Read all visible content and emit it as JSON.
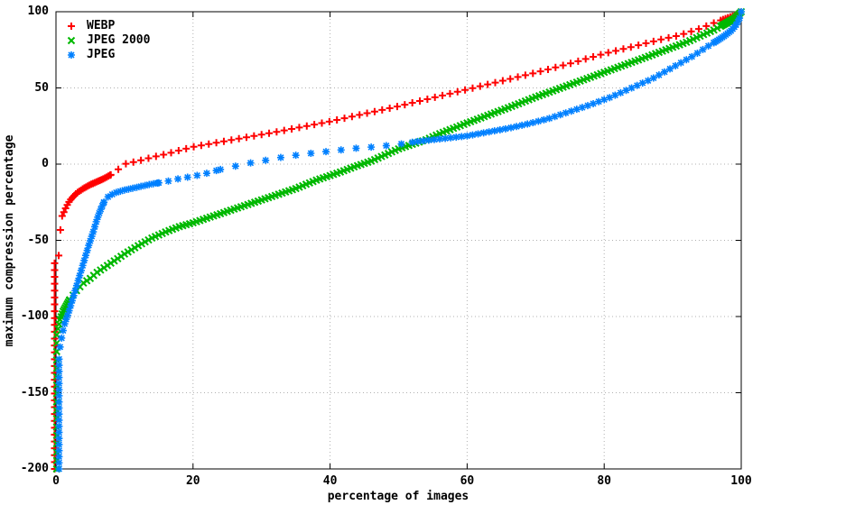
{
  "chart_data": {
    "type": "scatter",
    "title": "",
    "xlabel": "percentage of images",
    "ylabel": "maximum compression percentage",
    "xlim": [
      0,
      100
    ],
    "ylim": [
      -200,
      100
    ],
    "xticks": [
      0,
      20,
      40,
      60,
      80,
      100
    ],
    "yticks": [
      100,
      50,
      0,
      -50,
      -100,
      -150,
      -200
    ],
    "grid": true,
    "grid_style": "dotted",
    "grid_color": "#b0b0b0",
    "border_color": "#000000",
    "legend_position": "top-left-inside",
    "series": [
      {
        "name": "WEBP",
        "color": "#ff0000",
        "marker": "plus",
        "start_column": {
          "x": -0.2,
          "y_from": -200,
          "y_to": -62,
          "step": 4.5
        },
        "curve": [
          [
            0.4,
            -60
          ],
          [
            0.6,
            -45
          ],
          [
            0.9,
            -34
          ],
          [
            1.5,
            -28
          ],
          [
            2,
            -24
          ],
          [
            3,
            -19
          ],
          [
            4,
            -16
          ],
          [
            5,
            -13.5
          ],
          [
            6,
            -11.5
          ],
          [
            7,
            -9.5
          ],
          [
            8,
            -7
          ],
          [
            9,
            -4
          ],
          [
            9.5,
            -1
          ],
          [
            10,
            0
          ],
          [
            12,
            2
          ],
          [
            14,
            4.5
          ],
          [
            16,
            6.5
          ],
          [
            18,
            9
          ],
          [
            20,
            11.3
          ],
          [
            24,
            14.5
          ],
          [
            28,
            17.8
          ],
          [
            32,
            21
          ],
          [
            36,
            24.5
          ],
          [
            40,
            28
          ],
          [
            45,
            33
          ],
          [
            50,
            38
          ],
          [
            55,
            43.5
          ],
          [
            60,
            49
          ],
          [
            65,
            54.5
          ],
          [
            70,
            60
          ],
          [
            75,
            66
          ],
          [
            80,
            72.5
          ],
          [
            85,
            78
          ],
          [
            88,
            81.5
          ],
          [
            91,
            84.5
          ],
          [
            94,
            89
          ],
          [
            96.5,
            93.5
          ],
          [
            98,
            96
          ],
          [
            99,
            97.5
          ],
          [
            100,
            100
          ]
        ],
        "sampling": [
          {
            "from": 0.4,
            "to": 8,
            "step": 0.25
          },
          {
            "from": 8,
            "to": 97,
            "step": 1.1
          },
          {
            "from": 97,
            "to": 100,
            "step": 0.35
          }
        ]
      },
      {
        "name": "JPEG 2000",
        "color": "#00b800",
        "marker": "cross",
        "start_column": {
          "x": 0.1,
          "y_from": -200,
          "y_to": -112,
          "step": 5.5
        },
        "curve": [
          [
            0.3,
            -108
          ],
          [
            0.6,
            -102
          ],
          [
            1,
            -97
          ],
          [
            1.5,
            -93
          ],
          [
            2,
            -89
          ],
          [
            3,
            -83
          ],
          [
            4,
            -78
          ],
          [
            5,
            -75
          ],
          [
            6,
            -71
          ],
          [
            7,
            -68
          ],
          [
            8,
            -65
          ],
          [
            10,
            -59
          ],
          [
            12,
            -53.5
          ],
          [
            14,
            -48.5
          ],
          [
            16,
            -44.5
          ],
          [
            18,
            -41
          ],
          [
            20,
            -38.5
          ],
          [
            23,
            -34
          ],
          [
            26,
            -29.5
          ],
          [
            29,
            -25
          ],
          [
            32,
            -20.5
          ],
          [
            35,
            -16
          ],
          [
            38,
            -10.5
          ],
          [
            41,
            -6
          ],
          [
            44,
            -1
          ],
          [
            46,
            2
          ],
          [
            48,
            6
          ],
          [
            50,
            10
          ],
          [
            52,
            13
          ],
          [
            54,
            16
          ],
          [
            56,
            20
          ],
          [
            58,
            23.5
          ],
          [
            60,
            27
          ],
          [
            63,
            32
          ],
          [
            66,
            37
          ],
          [
            70,
            44
          ],
          [
            74,
            50.5
          ],
          [
            78,
            57
          ],
          [
            82,
            63.5
          ],
          [
            86,
            70
          ],
          [
            89,
            75
          ],
          [
            92,
            80
          ],
          [
            94,
            84
          ],
          [
            96,
            88
          ],
          [
            98,
            93
          ],
          [
            99,
            95.5
          ],
          [
            100,
            100
          ]
        ],
        "sampling": [
          {
            "from": 0.3,
            "to": 2,
            "step": 0.15
          },
          {
            "from": 2,
            "to": 97,
            "step": 0.5
          },
          {
            "from": 97,
            "to": 100,
            "step": 0.2
          }
        ]
      },
      {
        "name": "JPEG",
        "color": "#0080ff",
        "marker": "star",
        "start_column": {
          "x": 0.45,
          "y_from": -200,
          "y_to": -125,
          "step": 4
        },
        "curve": [
          [
            0.6,
            -120
          ],
          [
            0.9,
            -112
          ],
          [
            1.3,
            -104
          ],
          [
            1.8,
            -98
          ],
          [
            2.4,
            -89
          ],
          [
            3,
            -80
          ],
          [
            3.6,
            -71
          ],
          [
            4.2,
            -62
          ],
          [
            4.8,
            -53
          ],
          [
            5.4,
            -45
          ],
          [
            6,
            -36
          ],
          [
            6.5,
            -30
          ],
          [
            7,
            -25
          ],
          [
            7.6,
            -21.5
          ],
          [
            8.5,
            -19
          ],
          [
            10,
            -17
          ],
          [
            12,
            -15
          ],
          [
            14,
            -13
          ],
          [
            16,
            -11.5
          ],
          [
            18,
            -9.5
          ],
          [
            20,
            -8
          ],
          [
            22,
            -6
          ],
          [
            24,
            -3.5
          ],
          [
            26,
            -1.5
          ],
          [
            28,
            0.5
          ],
          [
            30,
            2
          ],
          [
            33,
            4.5
          ],
          [
            36,
            6.5
          ],
          [
            40,
            8.5
          ],
          [
            44,
            10.5
          ],
          [
            47,
            11.5
          ],
          [
            50,
            13
          ],
          [
            53,
            15
          ],
          [
            56,
            16.5
          ],
          [
            60,
            18.5
          ],
          [
            63,
            21
          ],
          [
            66,
            23.5
          ],
          [
            69,
            26.5
          ],
          [
            72,
            30
          ],
          [
            75,
            34.5
          ],
          [
            78,
            39
          ],
          [
            81,
            44
          ],
          [
            84,
            50
          ],
          [
            87,
            56
          ],
          [
            89,
            61
          ],
          [
            91,
            66
          ],
          [
            93,
            71
          ],
          [
            95,
            77
          ],
          [
            96.5,
            81
          ],
          [
            97.5,
            84
          ],
          [
            98.5,
            87.5
          ],
          [
            99.2,
            91
          ],
          [
            99.7,
            95
          ],
          [
            100,
            100
          ]
        ],
        "sampling": [
          {
            "from": 0.6,
            "to": 7,
            "step": 0.22
          },
          {
            "from": 7,
            "to": 15,
            "step": 0.6
          },
          {
            "from": 15,
            "to": 24,
            "step": 1.4
          },
          {
            "from": 24,
            "to": 52,
            "step": 2.2
          },
          {
            "from": 52,
            "to": 96,
            "step": 0.8
          },
          {
            "from": 96,
            "to": 100,
            "step": 0.25
          }
        ]
      }
    ]
  }
}
